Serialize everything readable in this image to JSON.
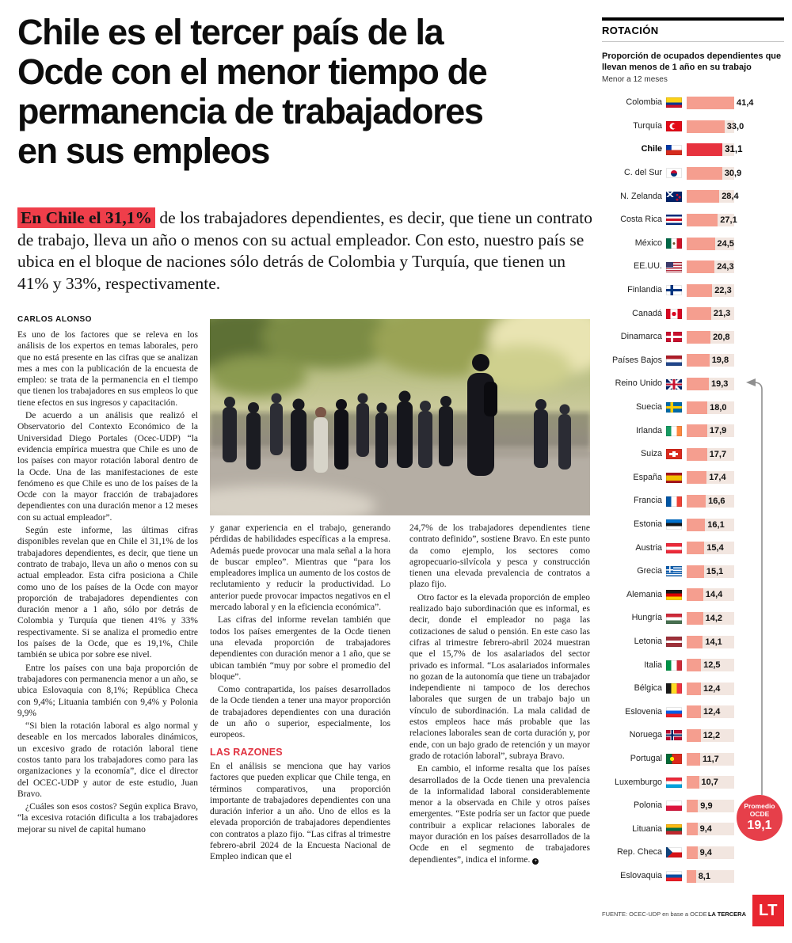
{
  "article": {
    "headline_lines": [
      "Chile es el tercer país de la",
      "Ocde con el menor tiempo de",
      "permanencia de trabajadores",
      "en sus empleos"
    ],
    "lead_highlight": "En Chile el 31,1%",
    "lead_rest": " de los trabajadores dependientes, es decir, que tiene un contrato de trabajo, lleva un año o menos con su actual empleador. Con esto, nuestro país se ubica en el bloque de naciones sólo detrás de Colombia y Turquía, que tienen un 41% y 33%, respectivamente.",
    "byline": "CARLOS ALONSO",
    "col1": [
      "Es uno de los factores que se releva en los análisis de los expertos en temas laborales, pero que no está presente en las cifras que se analizan mes a mes con la publicación de la encuesta de empleo: se trata de la permanencia en el tiempo que tienen los trabajadores en sus empleos lo que tiene efectos en sus ingresos y capacitación.",
      "De acuerdo a un análisis que realizó el Observatorio del Contexto Económico de la Universidad Diego Portales (Ocec-UDP) “la evidencia empírica muestra que Chile es uno de los países con mayor rotación laboral dentro de la Ocde. Una de las manifestaciones de este fenómeno es que Chile es uno de los países de la Ocde con la mayor fracción de trabajadores dependientes con una duración menor a 12 meses con su actual empleador”.",
      "Según este informe, las últimas cifras disponibles revelan que en Chile el 31,1% de los trabajadores dependientes, es decir, que tiene un contrato de trabajo, lleva un año o menos con su actual empleador. Esta cifra posiciona a Chile como uno de los países de la Ocde con mayor proporción de trabajadores dependientes con duración menor a 1 año, sólo por detrás de Colombia y Turquía que tienen 41% y 33% respectivamente. Si se analiza el promedio entre los países de la Ocde, que es 19,1%, Chile también se ubica por sobre ese nivel.",
      "Entre los países con una baja proporción de trabajadores con permanencia menor a un año, se ubica Eslovaquia con 8,1%; República Checa con 9,4%; Lituania también con 9,4% y Polonia 9,9%",
      "“Si bien la rotación laboral es algo normal y deseable en los mercados laborales dinámicos, un excesivo grado de rotación laboral tiene costos tanto para los trabajadores como para las organizaciones y la economía”, dice el director del OCEC-UDP y autor de este estudio, Juan Bravo.",
      "¿Cuáles son esos costos? Según explica Bravo, “la excesiva rotación dificulta a los trabajadores mejorar su nivel de capital humano"
    ],
    "col2_pre": [
      "y ganar experiencia en el trabajo, generando pérdidas de habilidades específicas a la empresa. Además puede provocar una mala señal a la hora de buscar empleo”. Mientras que “para los empleadores implica un aumento de los costos de reclutamiento y reducir la productividad. Lo anterior puede provocar impactos negativos en el mercado laboral y en la eficiencia económica”.",
      "Las cifras del informe revelan también que todos los países emergentes de la Ocde tienen una elevada proporción de trabajadores dependientes con duración menor a 1 año, que se ubican también “muy por sobre el promedio del bloque”.",
      "Como contrapartida, los países desarrollados de la Ocde tienden a tener una mayor proporción de trabajadores dependientes con una duración de un año o superior, especialmente, los europeos."
    ],
    "section_heading": "LAS RAZONES",
    "col2_post": [
      "En el análisis se menciona que hay varios factores que pueden explicar que Chile tenga, en términos comparativos, una proporción importante de trabajadores dependientes con una duración inferior a un año. Uno de ellos es la elevada proporción de trabajadores dependientes con contratos a plazo fijo. “Las cifras al trimestre febrero-abril 2024 de la Encuesta Nacional de Empleo indican que el"
    ],
    "col3": [
      "24,7% de los trabajadores dependientes tiene contrato definido”, sostiene Bravo. En este punto da como ejemplo, los sectores como agropecuario-silvícola y pesca y construcción tienen una elevada prevalencia de contratos a plazo fijo.",
      "Otro factor es la elevada proporción de empleo realizado bajo subordinación que es informal, es decir, donde el empleador no paga las cotizaciones de salud o pensión. En este caso las cifras al trimestre febrero-abril 2024 muestran que el 15,7% de los asalariados del sector privado es informal. “Los asalariados informales no gozan de la autonomía que tiene un trabajador independiente ni tampoco de los derechos laborales que surgen de un trabajo bajo un vínculo de subordinación. La mala calidad de estos empleos hace más probable que las relaciones laborales sean de corta duración y, por ende, con un bajo grado de retención y un mayor grado de rotación laboral”, subraya Bravo.",
      "En cambio, el informe resalta que los países desarrollados de la Ocde tienen una prevalencia de la informalidad laboral considerablemente menor a la observada en Chile y otros países emergentes. “Este podría ser un factor que puede contribuir a explicar relaciones laborales de mayor duración en los países desarrollados de la Ocde en el segmento de trabajadores dependientes”, indica el informe."
    ],
    "endmark": "+"
  },
  "chart_data": {
    "type": "bar",
    "orientation": "horizontal",
    "kicker": "ROTACIÓN",
    "title": "Proporción de ocupados dependientes que llevan menos de 1 año en su trabajo",
    "note": "Menor a 12 meses",
    "categories": [
      "Colombia",
      "Turquía",
      "Chile",
      "C. del Sur",
      "N. Zelanda",
      "Costa Rica",
      "México",
      "EE.UU.",
      "Finlandia",
      "Canadá",
      "Dinamarca",
      "Países Bajos",
      "Reino Unido",
      "Suecia",
      "Irlanda",
      "Suiza",
      "España",
      "Francia",
      "Estonia",
      "Austria",
      "Grecia",
      "Alemania",
      "Hungría",
      "Letonia",
      "Italia",
      "Bélgica",
      "Eslovenia",
      "Noruega",
      "Portugal",
      "Luxemburgo",
      "Polonia",
      "Lituania",
      "Rep. Checa",
      "Eslovaquia"
    ],
    "values": [
      41.4,
      33.0,
      31.1,
      30.9,
      28.4,
      27.1,
      24.5,
      24.3,
      22.3,
      21.3,
      20.8,
      19.8,
      19.3,
      18.0,
      17.9,
      17.7,
      17.4,
      16.6,
      16.1,
      15.4,
      15.1,
      14.4,
      14.2,
      14.1,
      12.5,
      12.4,
      12.4,
      12.2,
      11.7,
      10.7,
      9.9,
      9.4,
      9.4,
      8.1
    ],
    "flags": [
      "colombia",
      "turquia",
      "chile",
      "corea",
      "nzelanda",
      "costarica",
      "mexico",
      "eeuu",
      "finlandia",
      "canada",
      "dinamarca",
      "paisesbajos",
      "reinounido",
      "suecia",
      "irlanda",
      "suiza",
      "espana",
      "francia",
      "estonia",
      "austria",
      "grecia",
      "alemania",
      "hungria",
      "letonia",
      "italia",
      "belgica",
      "eslovenia",
      "noruega",
      "portugal",
      "luxemburgo",
      "polonia",
      "lituania",
      "repcheca",
      "eslovaquia"
    ],
    "highlight_index": 2,
    "highlight_category": "Chile",
    "average": 19.1,
    "average_display": "19,1",
    "average_label_lines": [
      "Promedio",
      "OCDE"
    ],
    "xlim": [
      0,
      41.4
    ],
    "source": "FUENTE: OCEC-UDP en base a OCDE",
    "credit": "LA TERCERA"
  },
  "footer": {
    "logo": "LT"
  },
  "theme": {
    "bar": "#F59E8F",
    "bar_highlight": "#E7323E",
    "track": "#F2E6E0",
    "accent": "#E63F4A",
    "section": "#E03240",
    "lead_bg": "#EF3E4A",
    "lt_red": "#E8252F"
  }
}
